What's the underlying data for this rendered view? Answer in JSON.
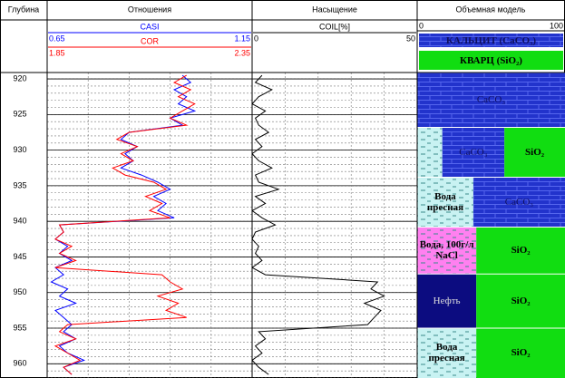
{
  "depth": {
    "label": "Глубина",
    "values": [
      919.5,
      920.5,
      921.5,
      922.5,
      923.5,
      924.5,
      925.5,
      926.5,
      927.5,
      928.5,
      929.5,
      930.5,
      931.5,
      932.5,
      933.5,
      934.5,
      935.5,
      936.5,
      937.5,
      938.5,
      939.5,
      940.5,
      941.5,
      942.5,
      943.5,
      944.5,
      945.5,
      946.5,
      947.5,
      948.5,
      949.5,
      950.5,
      951.5,
      952.5,
      953.5,
      954.5,
      955.5,
      956.5,
      957.5,
      958.5,
      959.5,
      960.5,
      961.5
    ],
    "ylim": [
      919.1,
      962.0
    ],
    "yticks": [
      920,
      925,
      930,
      935,
      940,
      945,
      950,
      955,
      960
    ]
  },
  "chart_data": [
    {
      "type": "line",
      "title": "Отношения",
      "grid": true,
      "series": [
        {
          "name": "CASI",
          "color": "#0000ff",
          "xlim": [
            0.65,
            1.15
          ],
          "values": [
            0.98,
            1.0,
            0.96,
            0.99,
            0.97,
            1.01,
            0.95,
            0.98,
            0.85,
            0.83,
            0.87,
            0.84,
            0.86,
            0.83,
            0.88,
            0.92,
            0.95,
            0.91,
            0.94,
            0.92,
            0.96,
            0.68,
            0.69,
            0.67,
            0.7,
            0.68,
            0.71,
            0.67,
            0.69,
            0.66,
            0.7,
            0.68,
            0.72,
            0.67,
            0.69,
            0.71,
            0.69,
            0.72,
            0.68,
            0.7,
            0.74,
            0.69,
            0.71
          ]
        },
        {
          "name": "COR",
          "color": "#ff0000",
          "xlim": [
            1.85,
            2.35
          ],
          "values": [
            2.19,
            2.16,
            2.2,
            2.17,
            2.21,
            2.18,
            2.15,
            2.19,
            2.05,
            2.02,
            2.07,
            2.03,
            2.06,
            2.01,
            2.04,
            2.11,
            2.14,
            2.09,
            2.13,
            2.1,
            2.15,
            1.88,
            1.89,
            1.87,
            1.91,
            1.88,
            1.92,
            1.87,
            2.13,
            2.15,
            2.18,
            2.12,
            2.17,
            2.14,
            2.19,
            1.9,
            1.88,
            1.92,
            1.87,
            1.9,
            1.93,
            1.89,
            1.91
          ]
        }
      ]
    },
    {
      "type": "line",
      "title": "Насыщение",
      "grid": true,
      "series": [
        {
          "name": "COIL[%]",
          "color": "#000000",
          "xlim": [
            0,
            50
          ],
          "values": [
            3,
            1,
            6,
            2,
            0,
            4,
            1,
            2,
            5,
            1,
            3,
            0,
            2,
            6,
            1,
            2,
            8,
            1,
            4,
            0,
            3,
            7,
            1,
            0,
            2,
            1,
            3,
            0,
            4,
            38,
            36,
            40,
            34,
            39,
            37,
            35,
            2,
            4,
            1,
            3,
            0,
            2,
            5
          ]
        }
      ]
    },
    {
      "type": "model",
      "title": "Объемная модель",
      "xlim": [
        0,
        100
      ],
      "legend": [
        {
          "label": "КАЛЬЦИТ (CaCO₃)",
          "color": "#2233cc",
          "pattern": "brick",
          "label_color": "#101060"
        },
        {
          "label": "КВАРЦ (SiO₂)",
          "color": "#11dd11",
          "pattern": null,
          "label_color": "#000000"
        }
      ],
      "intervals": [
        {
          "depths": [
            919.1,
            926.8
          ],
          "parts": [
            {
              "label": "CaCO₃",
              "value": 100,
              "color": "#2233cc",
              "pattern": "brick",
              "label_color": "#101060"
            }
          ]
        },
        {
          "depths": [
            926.8,
            933.8
          ],
          "parts": [
            {
              "label": null,
              "value": 17,
              "color": "#c8f2f2",
              "pattern": "dash",
              "label_color": "#000000"
            },
            {
              "label": "CaCO₃",
              "value": 42,
              "color": "#2233cc",
              "pattern": "brick",
              "label_color": "#101060"
            },
            {
              "label": "SiO₂",
              "value": 41,
              "color": "#11dd11",
              "pattern": null,
              "label_color": "#000000"
            }
          ]
        },
        {
          "depths": [
            933.8,
            940.8
          ],
          "parts": [
            {
              "label": "Вода пресная",
              "value": 38,
              "color": "#c8f2f2",
              "pattern": "dash",
              "label_color": "#000000"
            },
            {
              "label": "CaCO₃",
              "value": 62,
              "color": "#2233cc",
              "pattern": "brick",
              "label_color": "#101060"
            }
          ]
        },
        {
          "depths": [
            940.8,
            947.4
          ],
          "parts": [
            {
              "label": "Вода, 100г/л NaCl",
              "value": 40,
              "color": "#ff80f0",
              "pattern": "dash",
              "label_color": "#000000"
            },
            {
              "label": "SiO₂",
              "value": 60,
              "color": "#11dd11",
              "pattern": null,
              "label_color": "#000000"
            }
          ]
        },
        {
          "depths": [
            947.4,
            955.0
          ],
          "parts": [
            {
              "label": "Нефть",
              "value": 40,
              "color": "#0c0c80",
              "pattern": null,
              "label_color": "#dddddd"
            },
            {
              "label": "SiO₂",
              "value": 60,
              "color": "#11dd11",
              "pattern": null,
              "label_color": "#000000"
            }
          ]
        },
        {
          "depths": [
            955.0,
            962.0
          ],
          "parts": [
            {
              "label": "Вода пресная",
              "value": 40,
              "color": "#c8f2f2",
              "pattern": "dash",
              "label_color": "#000000"
            },
            {
              "label": "SiO₂",
              "value": 60,
              "color": "#11dd11",
              "pattern": null,
              "label_color": "#000000"
            }
          ]
        }
      ]
    }
  ]
}
